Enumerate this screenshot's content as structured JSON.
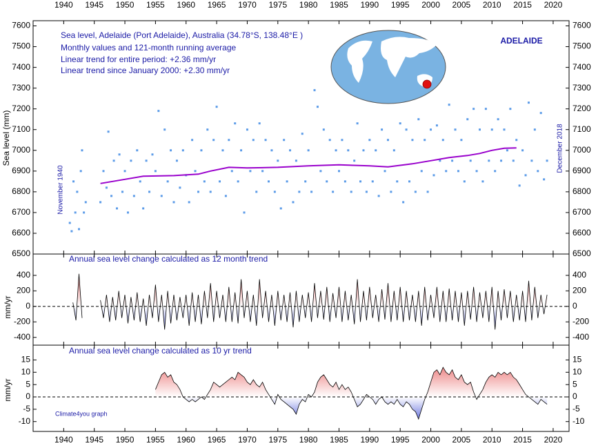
{
  "chart_data": [
    {
      "type": "scatter",
      "annotations": [
        "Sea level, Adelaide (Port Adelaide), Australia (34.78°S, 138.48°E )",
        "Monthly values and 121-month running average",
        "Linear trend for entire period: +2.36 mm/yr",
        "Linear trend since January 2000: +2.30 mm/yr"
      ],
      "location_label": "ADELAIDE",
      "start_label": "November 1940",
      "end_label": "December 2018",
      "y_label": "Sea level (mm)",
      "xlim": [
        1935,
        2022.6
      ],
      "xticks": [
        1940,
        1945,
        1950,
        1955,
        1960,
        1965,
        1970,
        1975,
        1980,
        1985,
        1990,
        1995,
        2000,
        2005,
        2010,
        2015,
        2020
      ],
      "ylim": [
        6500,
        7625
      ],
      "yticks": [
        6500,
        6600,
        6700,
        6800,
        6900,
        7000,
        7100,
        7200,
        7300,
        7400,
        7500,
        7600
      ],
      "series": [
        {
          "type": "scatter",
          "color": "#5b9be8",
          "x": [
            1941.0,
            1941.3,
            1941.6,
            1941.9,
            1942.2,
            1942.5,
            1942.8,
            1943.0,
            1943.3,
            1943.6,
            1946.0,
            1946.5,
            1947.0,
            1947.3,
            1947.8,
            1948.2,
            1948.7,
            1949.1,
            1949.6,
            1950.0,
            1950.5,
            1951.0,
            1951.5,
            1952.0,
            1952.5,
            1953.0,
            1953.5,
            1954.0,
            1954.5,
            1955.0,
            1955.5,
            1956.0,
            1956.5,
            1957.0,
            1957.5,
            1958.0,
            1958.5,
            1959.0,
            1959.5,
            1960.0,
            1960.5,
            1961.0,
            1961.5,
            1962.0,
            1962.5,
            1963.0,
            1963.5,
            1964.0,
            1964.5,
            1965.0,
            1965.5,
            1966.0,
            1966.5,
            1967.0,
            1967.5,
            1968.0,
            1968.5,
            1969.0,
            1969.5,
            1970.0,
            1970.5,
            1971.0,
            1971.5,
            1972.0,
            1972.5,
            1973.0,
            1973.5,
            1974.0,
            1974.5,
            1975.0,
            1975.5,
            1976.0,
            1976.5,
            1977.0,
            1977.5,
            1978.0,
            1978.5,
            1979.0,
            1979.5,
            1980.0,
            1980.5,
            1981.0,
            1981.5,
            1982.0,
            1982.5,
            1983.0,
            1983.5,
            1984.0,
            1984.5,
            1985.0,
            1985.5,
            1986.0,
            1986.5,
            1987.0,
            1987.5,
            1988.0,
            1988.5,
            1989.0,
            1989.5,
            1990.0,
            1990.5,
            1991.0,
            1991.5,
            1992.0,
            1992.5,
            1993.0,
            1993.5,
            1994.0,
            1994.5,
            1995.0,
            1995.5,
            1996.0,
            1996.5,
            1997.0,
            1997.5,
            1998.0,
            1998.5,
            1999.0,
            1999.5,
            2000.0,
            2000.5,
            2001.0,
            2001.5,
            2002.0,
            2002.5,
            2003.0,
            2003.5,
            2004.0,
            2004.5,
            2005.0,
            2005.5,
            2006.0,
            2006.5,
            2007.0,
            2007.5,
            2008.0,
            2008.5,
            2009.0,
            2009.5,
            2010.0,
            2010.5,
            2011.0,
            2011.5,
            2012.0,
            2012.5,
            2013.0,
            2013.5,
            2014.0,
            2014.5,
            2015.0,
            2015.5,
            2016.0,
            2016.5,
            2017.0,
            2017.5,
            2018.0,
            2018.5,
            2019.0
          ],
          "values": [
            6650,
            6610,
            6850,
            6700,
            6800,
            6620,
            6900,
            7000,
            6700,
            6750,
            6750,
            6900,
            6820,
            7090,
            6780,
            6950,
            6720,
            6980,
            6800,
            6900,
            6700,
            6950,
            6780,
            7000,
            6850,
            6720,
            6950,
            6800,
            6980,
            6900,
            7190,
            6780,
            7100,
            6850,
            7000,
            6750,
            6950,
            6820,
            7000,
            6880,
            6750,
            7050,
            6900,
            6800,
            7000,
            6850,
            7100,
            6800,
            7050,
            7210,
            6850,
            7000,
            6780,
            7050,
            6900,
            7130,
            6850,
            7000,
            6700,
            7100,
            6900,
            7050,
            6800,
            7130,
            6900,
            7050,
            6850,
            7000,
            6800,
            6950,
            6720,
            7050,
            6850,
            7000,
            6750,
            6950,
            6800,
            7080,
            6850,
            7000,
            6800,
            7290,
            7210,
            6900,
            7100,
            6850,
            7050,
            6800,
            7000,
            6900,
            7050,
            6850,
            7000,
            6800,
            6950,
            7130,
            6850,
            7000,
            6800,
            7050,
            6850,
            7000,
            6780,
            7100,
            6900,
            7050,
            6800,
            7000,
            6850,
            7130,
            6750,
            7100,
            6850,
            7050,
            6800,
            7150,
            6900,
            7050,
            6800,
            7100,
            6880,
            7120,
            6950,
            7050,
            6900,
            7220,
            6950,
            7100,
            6900,
            7050,
            6850,
            7150,
            6950,
            7200,
            6900,
            7100,
            6850,
            7200,
            6950,
            7100,
            6900,
            7150,
            6950,
            7100,
            7000,
            7200,
            6950,
            7050,
            6830,
            7000,
            6880,
            7230,
            6950,
            7100,
            6900,
            7180,
            6860,
            6950
          ]
        },
        {
          "type": "line",
          "color": "#9900cc",
          "x": [
            1946,
            1950,
            1953,
            1958,
            1962,
            1964,
            1967,
            1970,
            1975,
            1980,
            1985,
            1990,
            1993,
            1997,
            2000,
            2003,
            2006,
            2008,
            2010,
            2012,
            2014
          ],
          "values": [
            6840,
            6860,
            6875,
            6878,
            6885,
            6900,
            6918,
            6915,
            6918,
            6925,
            6930,
            6925,
            6920,
            6935,
            6950,
            6965,
            6975,
            6985,
            7000,
            7010,
            7012
          ]
        }
      ]
    },
    {
      "type": "area",
      "title": "Annual sea level change calculated as 12 month trend",
      "y_label": "mm/yr",
      "xlim": [
        1935,
        2022.6
      ],
      "xticks": [
        1940,
        1945,
        1950,
        1955,
        1960,
        1965,
        1970,
        1975,
        1980,
        1985,
        1990,
        1995,
        2000,
        2005,
        2010,
        2015,
        2020
      ],
      "ylim": [
        -500,
        675
      ],
      "yticks": [
        -400,
        -200,
        0,
        200,
        400
      ],
      "positive_color": "#e03030",
      "negative_color": "#2030d0",
      "zero_line": true,
      "x": [
        1941.5,
        1942,
        1942.5,
        1943,
        1943.5,
        1944,
        1944.5,
        1945,
        1945.5,
        1946,
        1946.5,
        1947,
        1947.5,
        1948,
        1948.5,
        1949,
        1949.5,
        1950,
        1950.5,
        1951,
        1951.5,
        1952,
        1952.5,
        1953,
        1953.5,
        1954,
        1954.5,
        1955,
        1955.5,
        1956,
        1956.5,
        1957,
        1957.5,
        1958,
        1958.5,
        1959,
        1959.5,
        1960,
        1960.5,
        1961,
        1961.5,
        1962,
        1962.5,
        1963,
        1963.5,
        1964,
        1964.5,
        1965,
        1965.5,
        1966,
        1966.5,
        1967,
        1967.5,
        1968,
        1968.5,
        1969,
        1969.5,
        1970,
        1970.5,
        1971,
        1971.5,
        1972,
        1972.5,
        1973,
        1973.5,
        1974,
        1974.5,
        1975,
        1975.5,
        1976,
        1976.5,
        1977,
        1977.5,
        1978,
        1978.5,
        1979,
        1979.5,
        1980,
        1980.5,
        1981,
        1981.5,
        1982,
        1982.5,
        1983,
        1983.5,
        1984,
        1984.5,
        1985,
        1985.5,
        1986,
        1986.5,
        1987,
        1987.5,
        1988,
        1988.5,
        1989,
        1989.5,
        1990,
        1990.5,
        1991,
        1991.5,
        1992,
        1992.5,
        1993,
        1993.5,
        1994,
        1994.5,
        1995,
        1995.5,
        1996,
        1996.5,
        1997,
        1997.5,
        1998,
        1998.5,
        1999,
        1999.5,
        2000,
        2000.5,
        2001,
        2001.5,
        2002,
        2002.5,
        2003,
        2003.5,
        2004,
        2004.5,
        2005,
        2005.5,
        2006,
        2006.5,
        2007,
        2007.5,
        2008,
        2008.5,
        2009,
        2009.5,
        2010,
        2010.5,
        2011,
        2011.5,
        2012,
        2012.5,
        2013,
        2013.5,
        2014,
        2014.5,
        2015,
        2015.5,
        2016,
        2016.5,
        2017,
        2017.5,
        2018,
        2018.5,
        2019
      ],
      "values": [
        50,
        -180,
        420,
        -150,
        null,
        null,
        null,
        null,
        null,
        80,
        -150,
        150,
        -200,
        120,
        -180,
        200,
        -150,
        150,
        -220,
        120,
        -180,
        180,
        -200,
        100,
        -250,
        150,
        -150,
        280,
        -200,
        150,
        -300,
        200,
        -220,
        150,
        -180,
        120,
        -150,
        150,
        -250,
        180,
        -200,
        150,
        -230,
        200,
        -150,
        300,
        -200,
        200,
        -150,
        150,
        -200,
        250,
        -200,
        180,
        -220,
        350,
        -150,
        200,
        -200,
        150,
        -250,
        350,
        -150,
        200,
        -200,
        150,
        -250,
        200,
        -180,
        150,
        -200,
        180,
        -270,
        200,
        -200,
        150,
        -150,
        180,
        -200,
        300,
        -150,
        200,
        -170,
        250,
        -200,
        170,
        -150,
        250,
        -200,
        200,
        -180,
        150,
        -230,
        350,
        -200,
        200,
        -180,
        250,
        -150,
        150,
        -200,
        220,
        -170,
        300,
        -200,
        200,
        -180,
        250,
        -200,
        200,
        -180,
        150,
        -200,
        200,
        -250,
        250,
        -180,
        150,
        -150,
        250,
        -200,
        200,
        -200,
        230,
        -180,
        200,
        -200,
        180,
        -250,
        200,
        -170,
        250,
        -200,
        180,
        -150,
        200,
        -200,
        250,
        -300,
        200,
        -180,
        220,
        -150,
        200,
        -200,
        150,
        -180,
        200,
        -200,
        330,
        -180,
        250,
        -150,
        150,
        -100,
        150
      ]
    },
    {
      "type": "area",
      "title": "Annual sea level change calculated as 10 yr trend",
      "y_label": "mm/yr",
      "note": "Climate4you graph",
      "xlim": [
        1935,
        2022.6
      ],
      "xticks": [
        1940,
        1945,
        1950,
        1955,
        1960,
        1965,
        1970,
        1975,
        1980,
        1985,
        1990,
        1995,
        2000,
        2005,
        2010,
        2015,
        2020
      ],
      "ylim": [
        -14,
        21
      ],
      "yticks": [
        -10,
        -5,
        0,
        5,
        10,
        15
      ],
      "positive_color": "#e03030",
      "negative_color": "#2030d0",
      "zero_line": true,
      "x": [
        1955,
        1955.5,
        1956,
        1956.5,
        1957,
        1957.5,
        1958,
        1958.5,
        1959,
        1959.5,
        1960,
        1960.5,
        1961,
        1961.5,
        1962,
        1962.5,
        1963,
        1963.5,
        1964,
        1964.5,
        1965,
        1965.5,
        1966,
        1966.5,
        1967,
        1967.5,
        1968,
        1968.5,
        1969,
        1969.5,
        1970,
        1970.5,
        1971,
        1971.5,
        1972,
        1972.5,
        1973,
        1973.5,
        1974,
        1974.5,
        1975,
        1975.5,
        1976,
        1976.5,
        1977,
        1977.5,
        1978,
        1978.5,
        1979,
        1979.5,
        1980,
        1980.5,
        1981,
        1981.5,
        1982,
        1982.5,
        1983,
        1983.5,
        1984,
        1984.5,
        1985,
        1985.5,
        1986,
        1986.5,
        1987,
        1987.5,
        1988,
        1988.5,
        1989,
        1989.5,
        1990,
        1990.5,
        1991,
        1991.5,
        1992,
        1992.5,
        1993,
        1993.5,
        1994,
        1994.5,
        1995,
        1995.5,
        1996,
        1996.5,
        1997,
        1997.5,
        1998,
        1998.5,
        1999,
        1999.5,
        2000,
        2000.5,
        2001,
        2001.5,
        2002,
        2002.5,
        2003,
        2003.5,
        2004,
        2004.5,
        2005,
        2005.5,
        2006,
        2006.5,
        2007,
        2007.5,
        2008,
        2008.5,
        2009,
        2009.5,
        2010,
        2010.5,
        2011,
        2011.5,
        2012,
        2012.5,
        2013,
        2013.5,
        2014,
        2014.5,
        2015,
        2015.5,
        2016,
        2016.5,
        2017,
        2017.5,
        2018,
        2018.5,
        2019
      ],
      "values": [
        3,
        6,
        9,
        10,
        8,
        9,
        6,
        5,
        3,
        0,
        -1,
        -2,
        -1,
        -2,
        -1,
        0,
        -1,
        1,
        3,
        6,
        5,
        4,
        5,
        6,
        7,
        8,
        7,
        10,
        9,
        8,
        6,
        5,
        7,
        5,
        4,
        6,
        3,
        1,
        -1,
        -3,
        1,
        -1,
        -2,
        -3,
        -4,
        -5,
        -7,
        -3,
        -1,
        -2,
        1,
        0,
        2,
        6,
        8,
        9,
        7,
        5,
        4,
        6,
        3,
        5,
        3,
        4,
        2,
        -1,
        -4,
        -3,
        -1,
        1,
        0,
        -1,
        -3,
        -1,
        0,
        -2,
        -3,
        -2,
        -3,
        -1,
        -3,
        -4,
        -2,
        -3,
        -5,
        -6,
        -9,
        -5,
        -1,
        2,
        6,
        10,
        11,
        9,
        12,
        10,
        9,
        11,
        8,
        7,
        9,
        6,
        5,
        6,
        2,
        -1,
        1,
        3,
        6,
        8,
        9,
        8,
        10,
        9,
        10,
        9,
        10,
        8,
        7,
        5,
        3,
        1,
        0,
        -1,
        -2,
        -3,
        -1,
        -2,
        -3
      ]
    }
  ]
}
